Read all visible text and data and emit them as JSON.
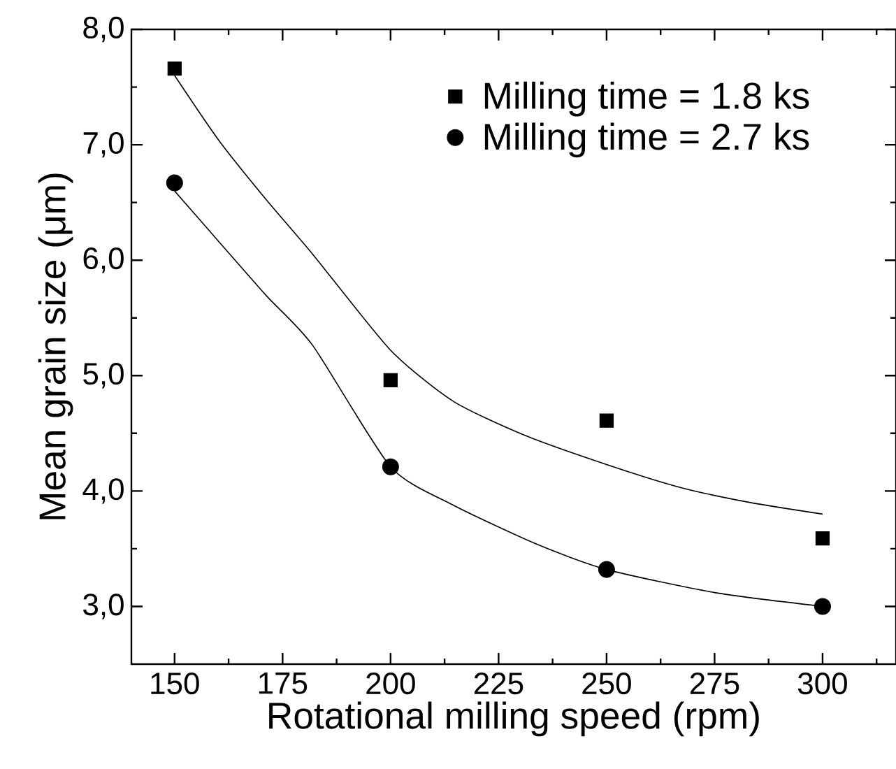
{
  "chart_data": {
    "type": "scatter",
    "xlabel": "Rotational milling speed (rpm)",
    "ylabel": "Mean grain size (μm)",
    "xlim": [
      140,
      317
    ],
    "ylim": [
      2.5,
      8.0
    ],
    "xticks": [
      {
        "value": 150,
        "label": "150"
      },
      {
        "value": 162.5,
        "label": null
      },
      {
        "value": 175,
        "label": "175"
      },
      {
        "value": 187.5,
        "label": null
      },
      {
        "value": 200,
        "label": "200"
      },
      {
        "value": 212.5,
        "label": null
      },
      {
        "value": 225,
        "label": "225"
      },
      {
        "value": 237.5,
        "label": null
      },
      {
        "value": 250,
        "label": "250"
      },
      {
        "value": 262.5,
        "label": null
      },
      {
        "value": 275,
        "label": "275"
      },
      {
        "value": 287.5,
        "label": null
      },
      {
        "value": 300,
        "label": "300"
      },
      {
        "value": 312.5,
        "label": null
      }
    ],
    "yticks": [
      {
        "value": 3,
        "label": "3,0"
      },
      {
        "value": 3.5,
        "label": null
      },
      {
        "value": 4,
        "label": "4,0"
      },
      {
        "value": 4.5,
        "label": null
      },
      {
        "value": 5,
        "label": "5,0"
      },
      {
        "value": 5.5,
        "label": null
      },
      {
        "value": 6,
        "label": "6,0"
      },
      {
        "value": 6.5,
        "label": null
      },
      {
        "value": 7,
        "label": "7,0"
      },
      {
        "value": 7.5,
        "label": null
      },
      {
        "value": 8,
        "label": "8,0"
      }
    ],
    "legend": "top right",
    "series": [
      {
        "name": "Milling time = 1.8 ks",
        "marker": "square",
        "color": "#000000",
        "x": [
          150,
          200,
          250,
          300
        ],
        "values": [
          7.66,
          4.96,
          4.61,
          3.59
        ]
      },
      {
        "name": "Milling time = 2.7 ks",
        "marker": "circle",
        "color": "#000000",
        "x": [
          150,
          200,
          250,
          300
        ],
        "values": [
          6.67,
          4.21,
          3.32,
          3.0
        ]
      },
      {
        "type": "line",
        "marker": "none",
        "color": "#000000",
        "x": [
          150,
          160.2,
          171.3,
          182,
          200,
          214.4,
          230.6,
          250,
          267.2,
          283.3,
          300
        ],
        "values": [
          7.6,
          7.04,
          6.52,
          6.05,
          5.22,
          4.78,
          4.49,
          4.23,
          4.03,
          3.9,
          3.8
        ]
      },
      {
        "type": "line",
        "marker": "none",
        "color": "#000000",
        "x": [
          150,
          160.5,
          171.3,
          182,
          200,
          214.4,
          233.8,
          250,
          275,
          300
        ],
        "values": [
          6.6,
          6.15,
          5.69,
          5.26,
          4.21,
          3.88,
          3.54,
          3.32,
          3.12,
          3.0
        ]
      }
    ]
  }
}
